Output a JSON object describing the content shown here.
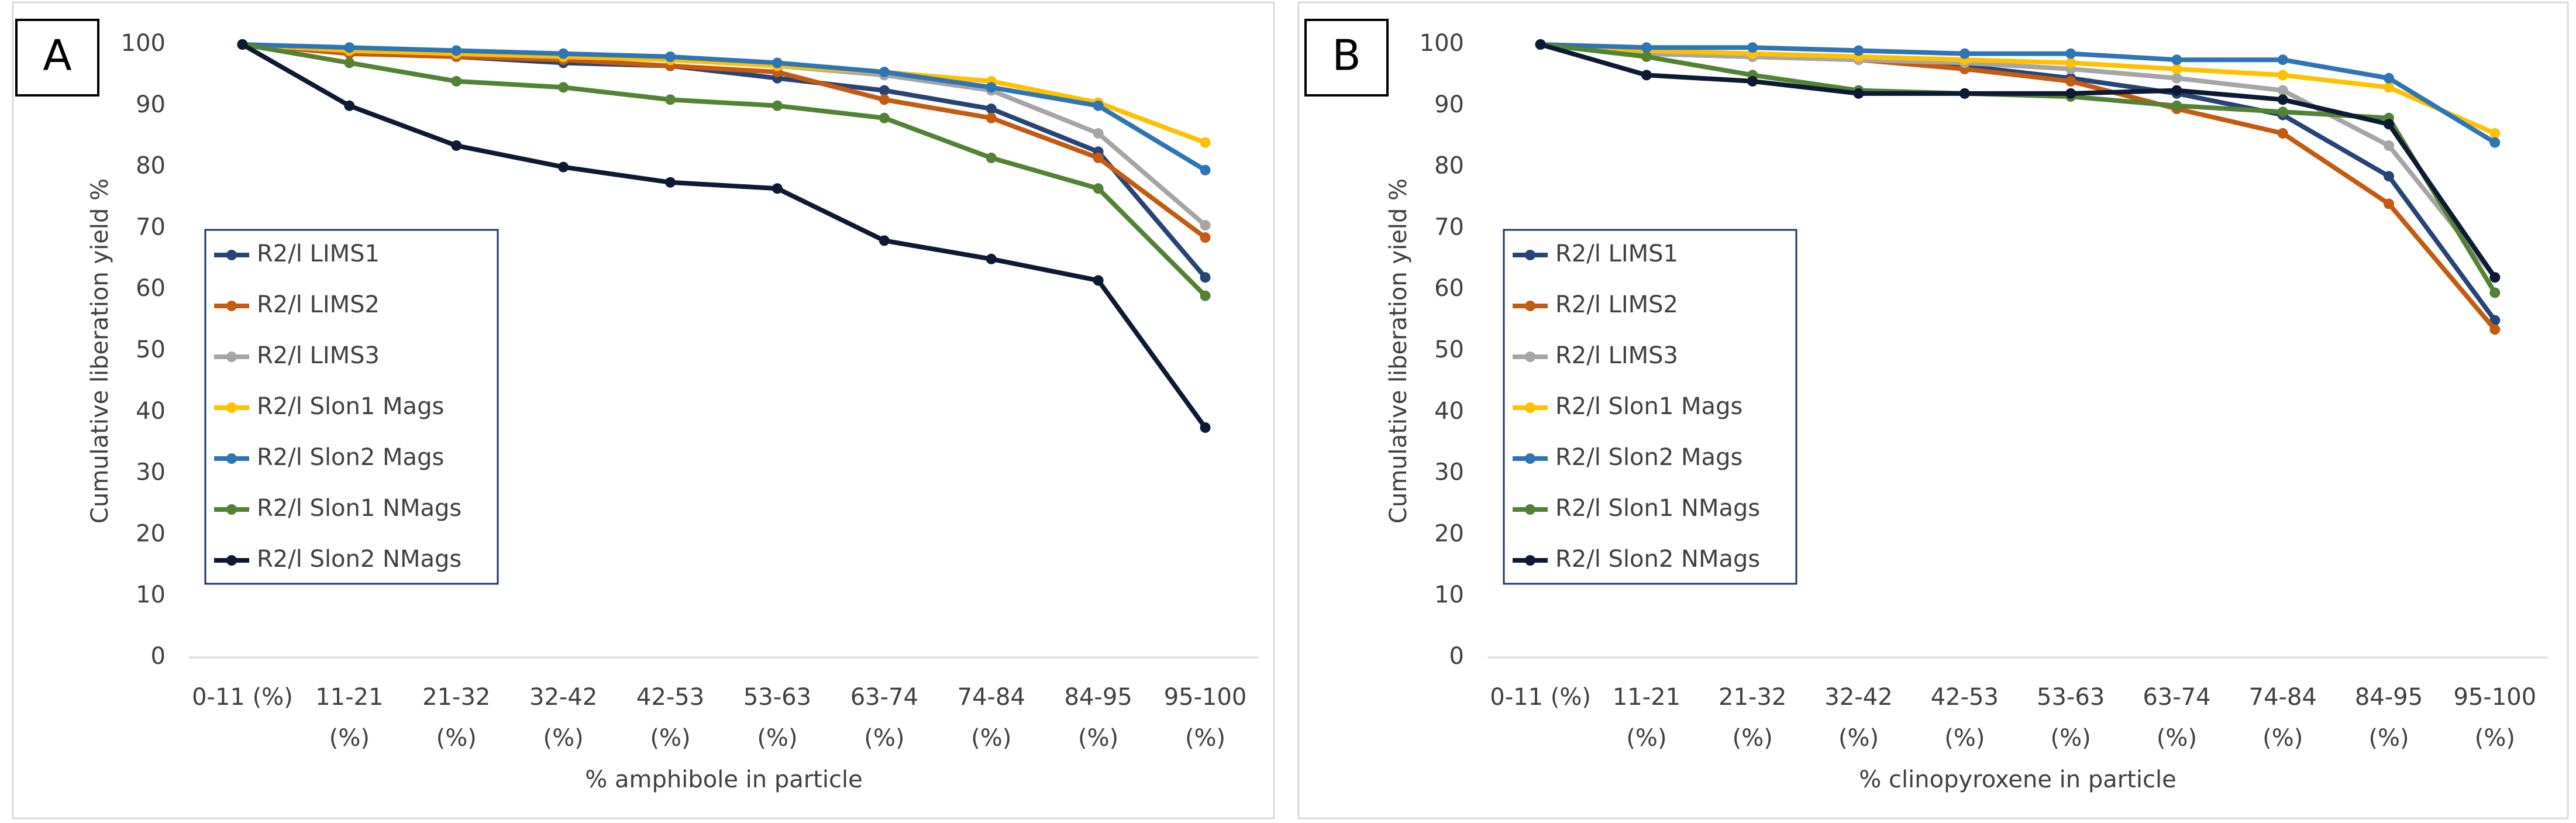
{
  "chart_data": [
    {
      "type": "line",
      "panel_label": "A",
      "y_label": "Cumulative liberation yield %",
      "x_label": "% amphibole in particle",
      "categories": [
        "0-11 (%)",
        "11-21\n(%)",
        "21-32\n(%)",
        "32-42\n(%)",
        "42-53\n(%)",
        "53-63\n(%)",
        "63-74\n(%)",
        "74-84\n(%)",
        "84-95\n(%)",
        "95-100\n(%)"
      ],
      "ylim": [
        0,
        100
      ],
      "yticks": [
        0,
        10,
        20,
        30,
        40,
        50,
        60,
        70,
        80,
        90,
        100
      ],
      "grid": false,
      "legend": "left",
      "series": [
        {
          "name": "R2/l LIMS1",
          "color": "#264478",
          "values": [
            100,
            99,
            98,
            97,
            96.5,
            94.5,
            92.5,
            89.5,
            82.5,
            62
          ]
        },
        {
          "name": "R2/l LIMS2",
          "color": "#c55a11",
          "values": [
            100,
            98.5,
            98,
            97.5,
            96.5,
            95.5,
            91,
            88,
            81.5,
            68.5
          ]
        },
        {
          "name": "R2/l LIMS3",
          "color": "#a5a5a5",
          "values": [
            100,
            99,
            98.5,
            98,
            97.5,
            96.5,
            95,
            92.5,
            85.5,
            70.5
          ]
        },
        {
          "name": "R2/l Slon1 Mags",
          "color": "#ffc000",
          "values": [
            100,
            99,
            98.5,
            98,
            97.5,
            96.5,
            95.5,
            94,
            90.5,
            84
          ]
        },
        {
          "name": "R2/l Slon2 Mags",
          "color": "#2e75b6",
          "values": [
            100,
            99.5,
            99,
            98.5,
            98,
            97,
            95.5,
            93,
            90,
            79.5
          ]
        },
        {
          "name": "R2/l Slon1 NMags",
          "color": "#548235",
          "values": [
            100,
            97,
            94,
            93,
            91,
            90,
            88,
            81.5,
            76.5,
            59
          ]
        },
        {
          "name": "R2/l Slon2 NMags",
          "color": "#0d1a33",
          "values": [
            100,
            90,
            83.5,
            80,
            77.5,
            76.5,
            68,
            65,
            61.5,
            37.5
          ]
        }
      ]
    },
    {
      "type": "line",
      "panel_label": "B",
      "y_label": "Cumulative liberation yield %",
      "x_label": "% clinopyroxene in particle",
      "categories": [
        "0-11 (%)",
        "11-21\n(%)",
        "21-32\n(%)",
        "32-42\n(%)",
        "42-53\n(%)",
        "53-63\n(%)",
        "63-74\n(%)",
        "74-84\n(%)",
        "84-95\n(%)",
        "95-100\n(%)"
      ],
      "ylim": [
        0,
        100
      ],
      "yticks": [
        0,
        10,
        20,
        30,
        40,
        50,
        60,
        70,
        80,
        90,
        100
      ],
      "grid": false,
      "legend": "left",
      "series": [
        {
          "name": "R2/l LIMS1",
          "color": "#264478",
          "values": [
            100,
            98.5,
            98,
            97.5,
            96.5,
            94.5,
            92,
            88.5,
            78.5,
            55
          ]
        },
        {
          "name": "R2/l LIMS2",
          "color": "#c55a11",
          "values": [
            100,
            98.5,
            98,
            97.5,
            96,
            94,
            89.5,
            85.5,
            74,
            53.5
          ]
        },
        {
          "name": "R2/l LIMS3",
          "color": "#a5a5a5",
          "values": [
            100,
            98.5,
            98,
            97.5,
            97,
            96,
            94.5,
            92.5,
            83.5,
            62
          ]
        },
        {
          "name": "R2/l Slon1 Mags",
          "color": "#ffc000",
          "values": [
            100,
            99,
            98.5,
            98,
            97.5,
            97,
            96,
            95,
            93,
            85.5
          ]
        },
        {
          "name": "R2/l Slon2 Mags",
          "color": "#2e75b6",
          "values": [
            100,
            99.5,
            99.5,
            99,
            98.5,
            98.5,
            97.5,
            97.5,
            94.5,
            84
          ]
        },
        {
          "name": "R2/l Slon1 NMags",
          "color": "#548235",
          "values": [
            100,
            98,
            95,
            92.5,
            92,
            91.5,
            90,
            89,
            88,
            59.5
          ]
        },
        {
          "name": "R2/l Slon2 NMags",
          "color": "#0d1a33",
          "values": [
            100,
            95,
            94,
            92,
            92,
            92,
            92.5,
            91,
            87,
            62
          ]
        }
      ]
    }
  ]
}
